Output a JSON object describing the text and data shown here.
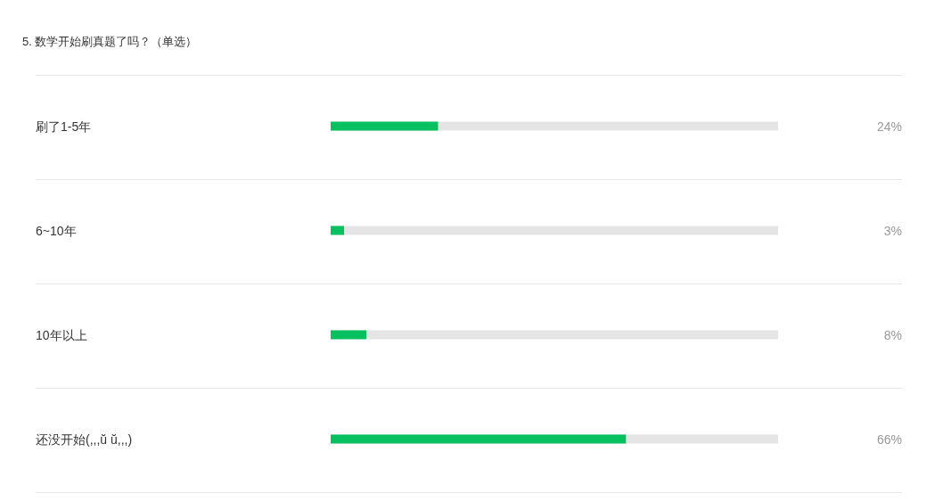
{
  "chart_data": {
    "type": "bar",
    "orientation": "horizontal",
    "title": "5. 数学开始刷真题了吗？（单选）",
    "categories": [
      "刷了1-5年",
      "6~10年",
      "10年以上",
      "还没开始(,,,ŭ ŭ,,,)"
    ],
    "values": [
      24,
      3,
      8,
      66
    ],
    "value_labels": [
      "24%",
      "3%",
      "8%",
      "66%"
    ],
    "color": "#07c160",
    "xlim": [
      0,
      100
    ],
    "tick_labels": "y"
  }
}
